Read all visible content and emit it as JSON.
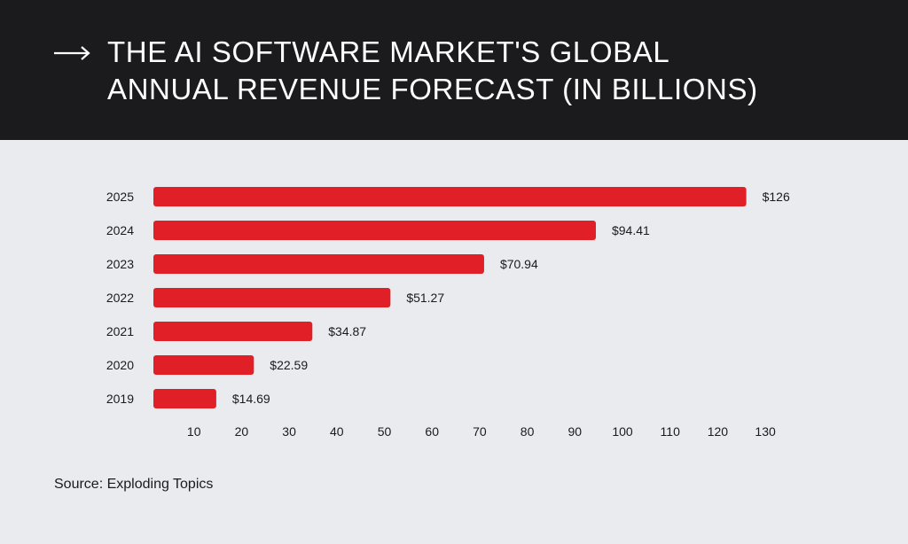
{
  "header": {
    "title_line1": "THE AI SOFTWARE MARKET'S GLOBAL",
    "title_line2": "ANNUAL REVENUE FORECAST (IN BILLIONS)",
    "icon": "arrow-right-icon",
    "background_color": "#1b1a1c",
    "text_color": "#ffffff"
  },
  "chart_data": {
    "type": "bar",
    "orientation": "horizontal",
    "title": "THE AI SOFTWARE MARKET'S GLOBAL ANNUAL REVENUE FORECAST (IN BILLIONS)",
    "categories": [
      "2025",
      "2024",
      "2023",
      "2022",
      "2021",
      "2020",
      "2019"
    ],
    "values": [
      126,
      94.41,
      70.94,
      51.27,
      34.87,
      22.59,
      14.69
    ],
    "value_labels": [
      "$126",
      "$94.41",
      "$70.94",
      "$51.27",
      "$34.87",
      "$22.59",
      "$14.69"
    ],
    "x_ticks": [
      10,
      20,
      30,
      40,
      50,
      60,
      70,
      80,
      90,
      100,
      110,
      120,
      130
    ],
    "xlim": [
      0,
      130
    ],
    "xlabel": "",
    "ylabel": "",
    "grid": false,
    "legend": "none",
    "bar_color": "#e01f26"
  },
  "footer": {
    "source": "Source: Exploding Topics"
  },
  "colors": {
    "background": "#e9ebee",
    "bar": "#e01f26",
    "text": "#1b1a1c"
  }
}
